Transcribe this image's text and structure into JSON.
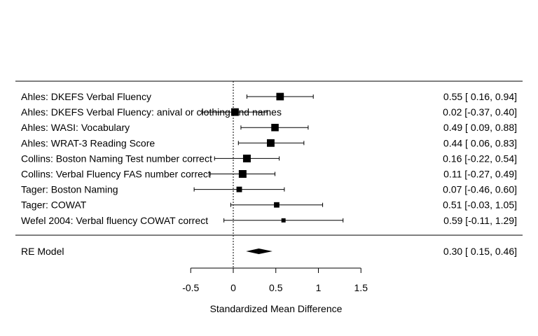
{
  "chart_data": {
    "type": "forest",
    "xlabel": "Standardized Mean Difference",
    "xlim": [
      -0.5,
      1.5
    ],
    "xticks": [
      -0.5,
      0,
      0.5,
      1,
      1.5
    ],
    "xtick_labels": [
      "-0.5",
      "0",
      "0.5",
      "1",
      "1.5"
    ],
    "reference_line": 0,
    "studies": [
      {
        "label": "Ahles: DKEFS Verbal Fluency",
        "estimate": 0.55,
        "lower": 0.16,
        "upper": 0.94,
        "ci_text": "0.55 [ 0.16, 0.94]"
      },
      {
        "label": "Ahles: DKEFS Verbal Fluency: anival or clothing and names",
        "estimate": 0.02,
        "lower": -0.37,
        "upper": 0.4,
        "ci_text": "0.02 [-0.37, 0.40]"
      },
      {
        "label": "Ahles: WASI: Vocabulary",
        "estimate": 0.49,
        "lower": 0.09,
        "upper": 0.88,
        "ci_text": "0.49 [ 0.09, 0.88]"
      },
      {
        "label": "Ahles: WRAT-3 Reading Score",
        "estimate": 0.44,
        "lower": 0.06,
        "upper": 0.83,
        "ci_text": "0.44 [ 0.06, 0.83]"
      },
      {
        "label": "Collins: Boston Naming Test number correct",
        "estimate": 0.16,
        "lower": -0.22,
        "upper": 0.54,
        "ci_text": "0.16 [-0.22, 0.54]"
      },
      {
        "label": "Collins: Verbal Fluency FAS number correct",
        "estimate": 0.11,
        "lower": -0.27,
        "upper": 0.49,
        "ci_text": "0.11 [-0.27, 0.49]"
      },
      {
        "label": "Tager: Boston Naming",
        "estimate": 0.07,
        "lower": -0.46,
        "upper": 0.6,
        "ci_text": "0.07 [-0.46, 0.60]"
      },
      {
        "label": "Tager: COWAT",
        "estimate": 0.51,
        "lower": -0.03,
        "upper": 1.05,
        "ci_text": "0.51 [-0.03, 1.05]"
      },
      {
        "label": "Wefel 2004: Verbal fluency COWAT correct",
        "estimate": 0.59,
        "lower": -0.11,
        "upper": 1.29,
        "ci_text": "0.59 [-0.11, 1.29]"
      }
    ],
    "summary": {
      "label": "RE Model",
      "estimate": 0.3,
      "lower": 0.15,
      "upper": 0.46,
      "ci_text": "0.30 [ 0.15, 0.46]"
    }
  }
}
